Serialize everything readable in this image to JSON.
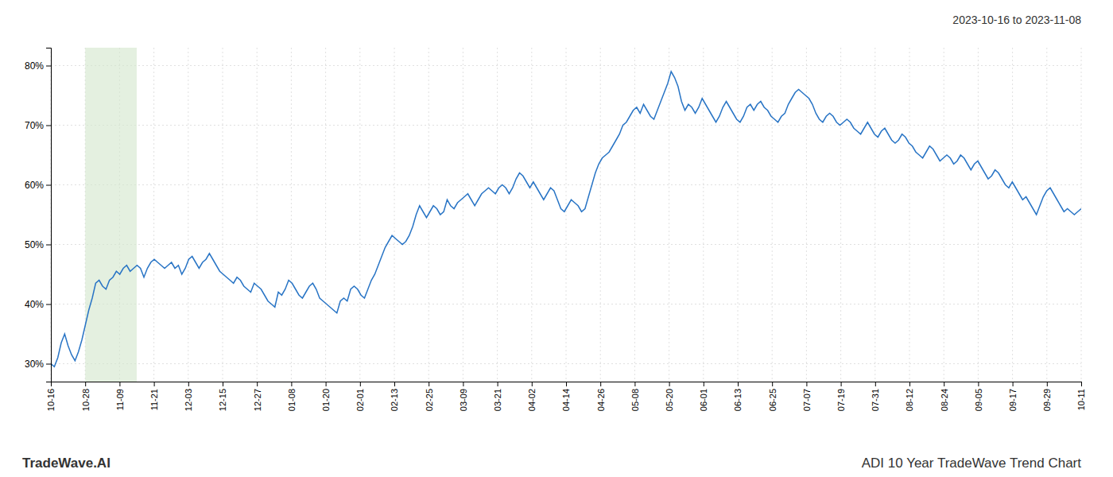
{
  "chart_data": {
    "type": "line",
    "title": "ADI 10 Year TradeWave Trend Chart",
    "subtitle": "2023-10-16 to 2023-11-08",
    "annotations": [
      "TradeWave.AI"
    ],
    "color": "#2874C5",
    "grid": true,
    "span": {
      "x": [
        1.0,
        2.5
      ],
      "color": "#d6e8d0"
    },
    "xlim": [
      0,
      30
    ],
    "xticks": [
      {
        "value": 0,
        "label": "10-16"
      },
      {
        "value": 1,
        "label": "10-28"
      },
      {
        "value": 2,
        "label": "11-09"
      },
      {
        "value": 3,
        "label": "11-21"
      },
      {
        "value": 4,
        "label": "12-03"
      },
      {
        "value": 5,
        "label": "12-15"
      },
      {
        "value": 6,
        "label": "12-27"
      },
      {
        "value": 7,
        "label": "01-08"
      },
      {
        "value": 8,
        "label": "01-20"
      },
      {
        "value": 9,
        "label": "02-01"
      },
      {
        "value": 10,
        "label": "02-13"
      },
      {
        "value": 11,
        "label": "02-25"
      },
      {
        "value": 12,
        "label": "03-09"
      },
      {
        "value": 13,
        "label": "03-21"
      },
      {
        "value": 14,
        "label": "04-02"
      },
      {
        "value": 15,
        "label": "04-14"
      },
      {
        "value": 16,
        "label": "04-26"
      },
      {
        "value": 17,
        "label": "05-08"
      },
      {
        "value": 18,
        "label": "05-20"
      },
      {
        "value": 19,
        "label": "06-01"
      },
      {
        "value": 20,
        "label": "06-13"
      },
      {
        "value": 21,
        "label": "06-25"
      },
      {
        "value": 22,
        "label": "07-07"
      },
      {
        "value": 23,
        "label": "07-19"
      },
      {
        "value": 24,
        "label": "07-31"
      },
      {
        "value": 25,
        "label": "08-12"
      },
      {
        "value": 26,
        "label": "08-24"
      },
      {
        "value": 27,
        "label": "09-05"
      },
      {
        "value": 28,
        "label": "09-17"
      },
      {
        "value": 29,
        "label": "09-29"
      },
      {
        "value": 30,
        "label": "10-11"
      }
    ],
    "ylim": [
      27,
      83
    ],
    "yticks": [
      {
        "value": 30,
        "label": "30%"
      },
      {
        "value": 40,
        "label": "40%"
      },
      {
        "value": 50,
        "label": "50%"
      },
      {
        "value": 60,
        "label": "60%"
      },
      {
        "value": 70,
        "label": "70%"
      },
      {
        "value": 80,
        "label": "80%"
      }
    ],
    "values": [
      30.0,
      29.5,
      31.0,
      33.5,
      35.0,
      33.0,
      31.5,
      30.5,
      32.0,
      34.0,
      36.5,
      39.0,
      41.0,
      43.5,
      44.0,
      43.0,
      42.5,
      44.0,
      44.5,
      45.5,
      45.0,
      46.0,
      46.5,
      45.5,
      46.0,
      46.5,
      46.0,
      44.5,
      46.0,
      47.0,
      47.5,
      47.0,
      46.5,
      46.0,
      46.5,
      47.0,
      46.0,
      46.5,
      45.0,
      46.0,
      47.5,
      48.0,
      47.0,
      46.0,
      47.0,
      47.5,
      48.5,
      47.5,
      46.5,
      45.5,
      45.0,
      44.5,
      44.0,
      43.5,
      44.5,
      44.0,
      43.0,
      42.5,
      42.0,
      43.5,
      43.0,
      42.5,
      41.5,
      40.5,
      40.0,
      39.5,
      42.0,
      41.5,
      42.5,
      44.0,
      43.5,
      42.5,
      41.5,
      41.0,
      42.0,
      43.0,
      43.5,
      42.5,
      41.0,
      40.5,
      40.0,
      39.5,
      39.0,
      38.5,
      40.5,
      41.0,
      40.5,
      42.5,
      43.0,
      42.5,
      41.5,
      41.0,
      42.5,
      44.0,
      45.0,
      46.5,
      48.0,
      49.5,
      50.5,
      51.5,
      51.0,
      50.5,
      50.0,
      50.5,
      51.5,
      53.0,
      55.0,
      56.5,
      55.5,
      54.5,
      55.5,
      56.5,
      56.0,
      55.0,
      55.5,
      57.5,
      56.5,
      56.0,
      57.0,
      57.5,
      58.0,
      58.5,
      57.5,
      56.5,
      57.5,
      58.5,
      59.0,
      59.5,
      59.0,
      58.5,
      59.5,
      60.0,
      59.5,
      58.5,
      59.5,
      61.0,
      62.0,
      61.5,
      60.5,
      59.5,
      60.5,
      59.5,
      58.5,
      57.5,
      58.5,
      59.5,
      59.0,
      57.5,
      56.0,
      55.5,
      56.5,
      57.5,
      57.0,
      56.5,
      55.5,
      56.0,
      58.0,
      60.0,
      62.0,
      63.5,
      64.5,
      65.0,
      65.5,
      66.5,
      67.5,
      68.5,
      70.0,
      70.5,
      71.5,
      72.5,
      73.0,
      72.0,
      73.5,
      72.5,
      71.5,
      71.0,
      72.5,
      74.0,
      75.5,
      77.0,
      79.0,
      78.0,
      76.5,
      74.0,
      72.5,
      73.5,
      73.0,
      72.0,
      73.0,
      74.5,
      73.5,
      72.5,
      71.5,
      70.5,
      71.5,
      73.0,
      74.0,
      73.0,
      72.0,
      71.0,
      70.5,
      71.5,
      73.0,
      73.5,
      72.5,
      73.5,
      74.0,
      73.0,
      72.5,
      71.5,
      71.0,
      70.5,
      71.5,
      72.0,
      73.5,
      74.5,
      75.5,
      76.0,
      75.5,
      75.0,
      74.5,
      73.5,
      72.0,
      71.0,
      70.5,
      71.5,
      72.0,
      71.5,
      70.5,
      70.0,
      70.5,
      71.0,
      70.5,
      69.5,
      69.0,
      68.5,
      69.5,
      70.5,
      69.5,
      68.5,
      68.0,
      69.0,
      69.5,
      68.5,
      67.5,
      67.0,
      67.5,
      68.5,
      68.0,
      67.0,
      66.5,
      65.5,
      65.0,
      64.5,
      65.5,
      66.5,
      66.0,
      65.0,
      64.0,
      64.5,
      65.0,
      64.5,
      63.5,
      64.0,
      65.0,
      64.5,
      63.5,
      62.5,
      63.5,
      64.0,
      63.0,
      62.0,
      61.0,
      61.5,
      62.5,
      62.0,
      61.0,
      60.0,
      59.5,
      60.5,
      59.5,
      58.5,
      57.5,
      58.0,
      57.0,
      56.0,
      55.0,
      56.5,
      58.0,
      59.0,
      59.5,
      58.5,
      57.5,
      56.5,
      55.5,
      56.0,
      55.5,
      55.0,
      55.5,
      56.0
    ]
  }
}
